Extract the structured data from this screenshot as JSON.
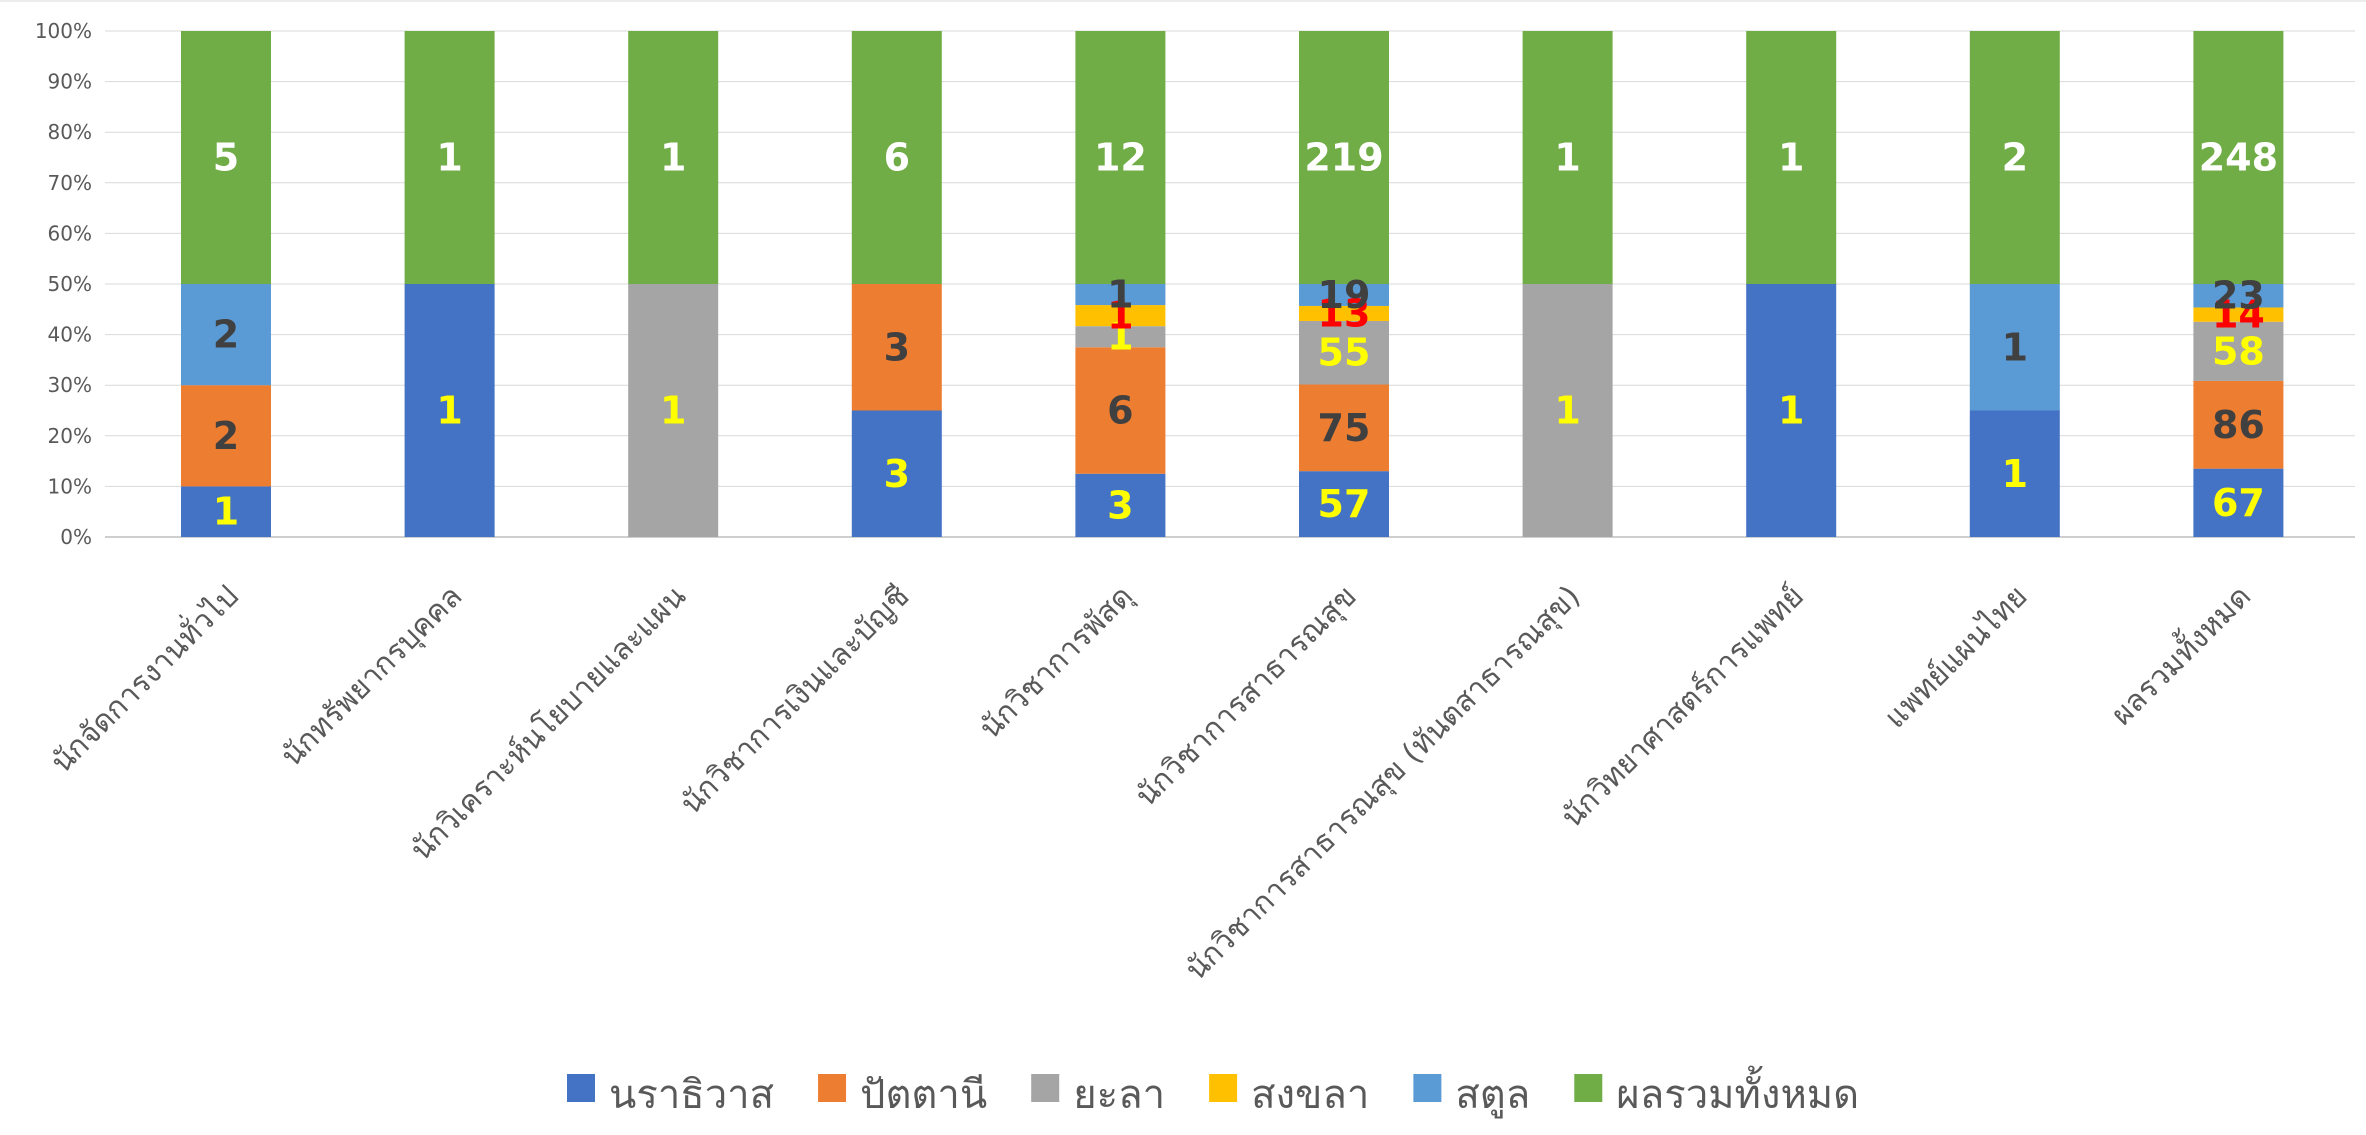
{
  "chart_data": {
    "type": "bar",
    "stacked": true,
    "normalized": true,
    "categories": [
      "นักจัดการงานทั่วไป",
      "นักทรัพยากรบุคคล",
      "นักวิเคราะห์นโยบายและแผน",
      "นักวิชาการเงินและบัญชี",
      "นักวิชาการพัสดุ",
      "นักวิชาการสาธารณสุข",
      "นักวิชาการสาธารณสุข (ทันตสาธารณสุข)",
      "นักวิทยาศาสตร์การแพทย์",
      "แพทย์แผนไทย",
      "ผลรวมทั้งหมด"
    ],
    "series": [
      {
        "name": "นราธิวาส",
        "color": "#4472C4",
        "label_color": "#FFFF00",
        "values": [
          1,
          1,
          0,
          3,
          3,
          57,
          0,
          1,
          1,
          67
        ]
      },
      {
        "name": "ปัตตานี",
        "color": "#ED7D31",
        "label_color": "#404040",
        "values": [
          2,
          0,
          0,
          3,
          6,
          75,
          0,
          0,
          0,
          86
        ]
      },
      {
        "name": "ยะลา",
        "color": "#A5A5A5",
        "label_color": "#FFFF00",
        "values": [
          0,
          0,
          1,
          0,
          1,
          55,
          1,
          0,
          0,
          58
        ]
      },
      {
        "name": "สงขลา",
        "color": "#FFC000",
        "label_color": "#FF0000",
        "values": [
          0,
          0,
          0,
          0,
          1,
          13,
          0,
          0,
          0,
          14
        ]
      },
      {
        "name": "สตูล",
        "color": "#5B9BD5",
        "label_color": "#404040",
        "values": [
          2,
          0,
          0,
          0,
          1,
          19,
          0,
          0,
          1,
          23
        ]
      },
      {
        "name": "ผลรวมทั้งหมด",
        "color": "#70AD47",
        "label_color": "#FFFFFF",
        "values": [
          5,
          1,
          1,
          6,
          12,
          219,
          1,
          1,
          2,
          248
        ]
      }
    ],
    "y_ticks": [
      "0%",
      "10%",
      "20%",
      "30%",
      "40%",
      "50%",
      "60%",
      "70%",
      "80%",
      "90%",
      "100%"
    ],
    "ylim": [
      0,
      100
    ],
    "grid": true,
    "legend_position": "bottom"
  }
}
